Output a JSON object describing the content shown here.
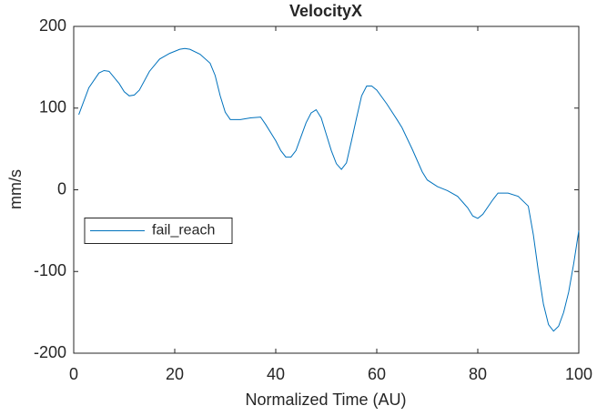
{
  "chart_data": {
    "type": "line",
    "title": "VelocityX",
    "x_label": "Normalized Time (AU)",
    "y_label": "mm/s",
    "x": [
      1,
      3,
      5,
      6,
      7,
      9,
      10,
      11,
      12,
      13,
      15,
      17,
      19,
      21,
      22,
      23,
      25,
      27,
      28,
      29,
      30,
      31,
      33,
      35,
      37,
      38,
      40,
      41,
      42,
      43,
      44,
      45,
      46,
      47,
      48,
      49,
      50,
      51,
      52,
      53,
      54,
      55,
      56,
      57,
      58,
      59,
      60,
      62,
      64,
      65,
      67,
      69,
      70,
      72,
      74,
      76,
      78,
      79,
      80,
      81,
      83,
      84,
      86,
      88,
      90,
      91,
      92,
      93,
      94,
      95,
      96,
      97,
      98,
      99,
      100
    ],
    "series": [
      {
        "name": "fail_reach",
        "color": "#0072bd",
        "values": [
          92,
          125,
          143,
          146,
          145,
          130,
          120,
          115,
          116,
          122,
          145,
          160,
          167,
          172,
          173,
          172,
          166,
          155,
          140,
          115,
          95,
          86,
          86,
          88,
          89,
          80,
          60,
          48,
          40,
          40,
          48,
          65,
          82,
          94,
          98,
          88,
          68,
          48,
          32,
          25,
          33,
          60,
          88,
          115,
          127,
          127,
          122,
          105,
          86,
          76,
          50,
          22,
          12,
          4,
          -1,
          -8,
          -22,
          -32,
          -35,
          -30,
          -12,
          -4,
          -4,
          -8,
          -20,
          -55,
          -100,
          -140,
          -165,
          -173,
          -167,
          -150,
          -125,
          -90,
          -50
        ]
      }
    ],
    "xlim": [
      0,
      100
    ],
    "xticks": [
      0,
      20,
      40,
      60,
      80,
      100
    ],
    "ylim": [
      -200,
      200
    ],
    "yticks": [
      -200,
      -100,
      0,
      100,
      200
    ],
    "legend_position": "west"
  }
}
